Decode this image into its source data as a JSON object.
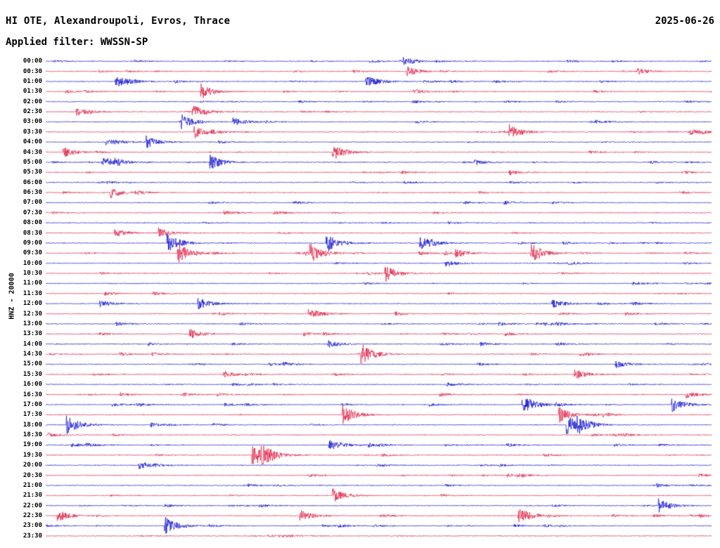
{
  "header": {
    "station_line": "HI OTE, Alexandroupoli, Evros, Thrace",
    "date": "2025-06-26",
    "filter_line": "Applied filter: WWSSN-SP"
  },
  "axis": {
    "vertical_label": "HNZ - 20000"
  },
  "chart_data": {
    "type": "line",
    "subtype": "helicorder-seismogram",
    "title": "HI OTE, Alexandroupoli, Evros, Thrace",
    "date": "2025-06-26",
    "filter": "WWSSN-SP",
    "network": "HI",
    "station": "OTE",
    "channel": "HNZ",
    "amplitude_scale": 20000,
    "rows": 48,
    "minutes_per_row": 30,
    "x_range_minutes": [
      0,
      30
    ],
    "grid": false,
    "legend": false,
    "description": "24-hour continuous seismic trace split into 48 half-hour rows; traces alternate blue and red; continuous background microseismic noise with intermittent short event bursts and occasional large spikes in many rows.",
    "trace_colors_alternate": [
      "#0000cd",
      "#dc143c"
    ],
    "time_labels": [
      "00:00",
      "00:30",
      "01:00",
      "01:30",
      "02:00",
      "02:30",
      "03:00",
      "03:30",
      "04:00",
      "04:30",
      "05:00",
      "05:30",
      "06:00",
      "06:30",
      "07:00",
      "07:30",
      "08:00",
      "08:30",
      "09:00",
      "09:30",
      "10:00",
      "10:30",
      "11:00",
      "11:30",
      "12:00",
      "12:30",
      "13:00",
      "13:30",
      "14:00",
      "14:30",
      "15:00",
      "15:30",
      "16:00",
      "16:30",
      "17:00",
      "17:30",
      "18:00",
      "18:30",
      "19:00",
      "19:30",
      "20:00",
      "20:30",
      "21:00",
      "21:30",
      "22:00",
      "22:30",
      "23:00",
      "23:30"
    ]
  },
  "colors": {
    "background": "#ffffff",
    "text": "#000000",
    "trace_blue": "#0000cd",
    "trace_red": "#dc143c"
  }
}
